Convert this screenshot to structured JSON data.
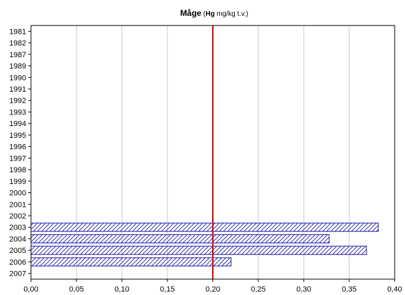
{
  "chart_data": {
    "type": "bar",
    "orientation": "horizontal",
    "title": {
      "species": "Måge",
      "paren_open": "(",
      "element": "Hg",
      "unit": " mg/kg t.v.)"
    },
    "categories": [
      "1981",
      "1982",
      "1987",
      "1989",
      "1990",
      "1991",
      "1992",
      "1993",
      "1994",
      "1995",
      "1996",
      "1997",
      "1998",
      "1999",
      "2000",
      "2001",
      "2002",
      "2003",
      "2004",
      "2005",
      "2006",
      "2007"
    ],
    "values": [
      null,
      null,
      null,
      null,
      null,
      null,
      null,
      null,
      null,
      null,
      null,
      null,
      null,
      null,
      null,
      null,
      null,
      0.382,
      0.328,
      0.369,
      0.22,
      null
    ],
    "xlim": [
      0,
      0.4
    ],
    "x_ticks": [
      0,
      0.05,
      0.1,
      0.15,
      0.2,
      0.25,
      0.3,
      0.35,
      0.4
    ],
    "x_tick_labels": [
      "0,00",
      "0,05",
      "0,10",
      "0,15",
      "0,20",
      "0,25",
      "0,30",
      "0,35",
      "0,40"
    ],
    "reference_line": {
      "value": 0.2,
      "color": "#e00000"
    },
    "bar_color": "#1a1aa8",
    "bar_fill": "diagonal hatch",
    "grid": "vertical gridlines",
    "legend": "none"
  }
}
